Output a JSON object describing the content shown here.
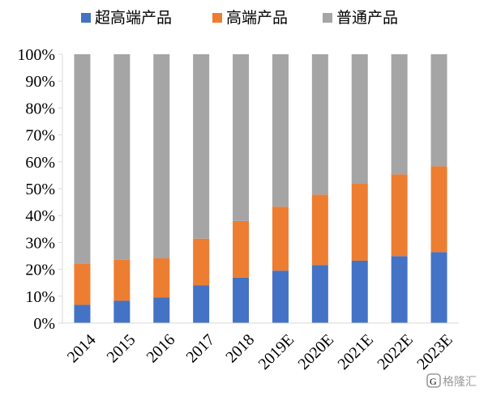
{
  "chart_data": {
    "type": "bar",
    "stacked": true,
    "title": "",
    "xlabel": "",
    "ylabel": "",
    "ylim": [
      0,
      100
    ],
    "y_ticks": [
      "0%",
      "10%",
      "20%",
      "30%",
      "40%",
      "50%",
      "60%",
      "70%",
      "80%",
      "90%",
      "100%"
    ],
    "categories": [
      "2014",
      "2015",
      "2016",
      "2017",
      "2018",
      "2019E",
      "2020E",
      "2021E",
      "2022E",
      "2023E"
    ],
    "series": [
      {
        "name": "超高端产品",
        "color": "#4472C4",
        "values": [
          6.8,
          8.3,
          9.5,
          14.0,
          16.9,
          19.5,
          21.6,
          23.2,
          24.9,
          26.4
        ]
      },
      {
        "name": "高端产品",
        "color": "#ED7D31",
        "values": [
          15.2,
          15.3,
          14.6,
          17.4,
          21.1,
          23.8,
          26.2,
          28.6,
          30.4,
          31.9
        ]
      },
      {
        "name": "普通产品",
        "color": "#A5A5A5",
        "values": [
          78.0,
          76.4,
          75.9,
          68.6,
          62.0,
          56.7,
          52.2,
          48.2,
          44.7,
          41.7
        ]
      }
    ],
    "legend_position": "top",
    "grid": false
  },
  "watermark": {
    "icon": "gelonghui-logo-icon",
    "text": "格隆汇"
  }
}
